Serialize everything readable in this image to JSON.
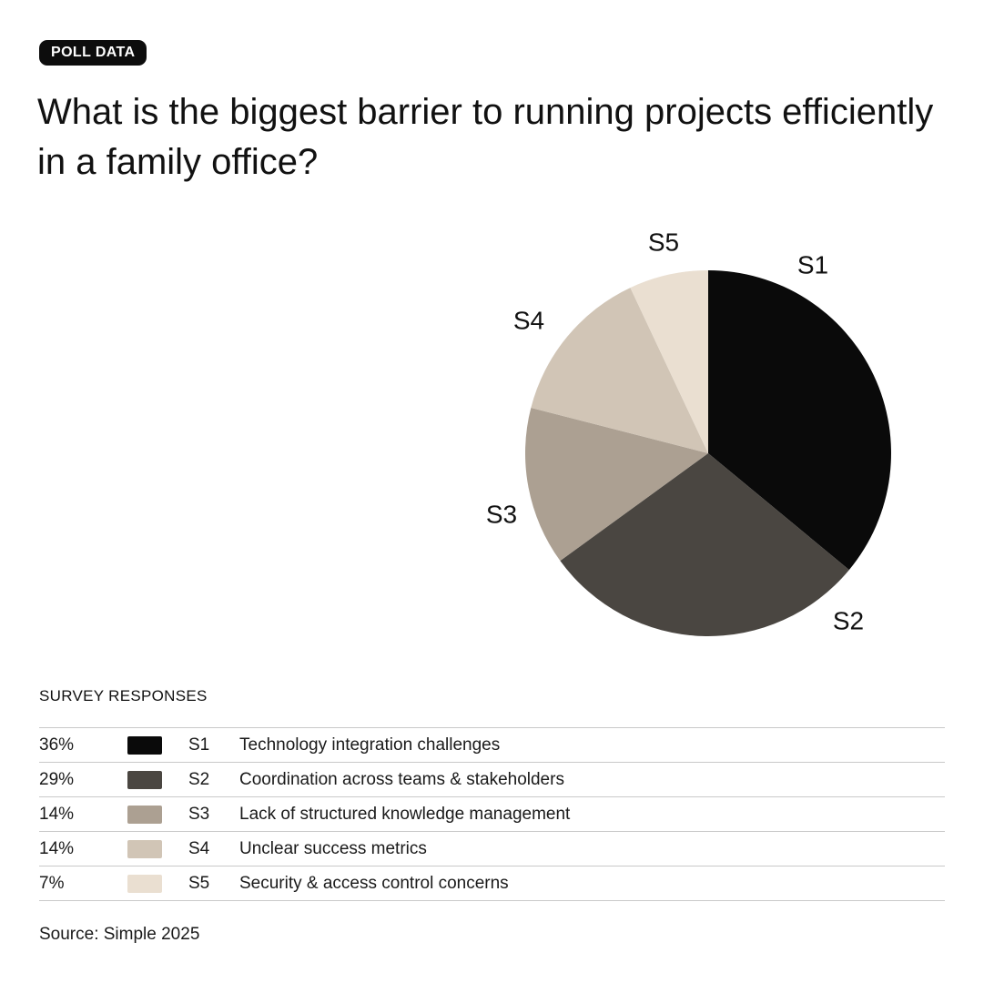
{
  "badge": {
    "label": "POLL DATA"
  },
  "title": "What is the biggest barrier to running projects efficiently in a family office?",
  "section_header": "SURVEY RESPONSES",
  "source": "Source: Simple 2025",
  "chart_data": {
    "type": "pie",
    "title": "What is the biggest barrier to running projects efficiently in a family office?",
    "start_angle": "12 o'clock",
    "direction": "clockwise",
    "legend_position": "table below chart",
    "slices": [
      {
        "code": "S1",
        "label": "Technology integration challenges",
        "value_pct": 36,
        "color": "#0a0a0a"
      },
      {
        "code": "S2",
        "label": "Coordination across teams & stakeholders",
        "value_pct": 29,
        "color": "#4a4641"
      },
      {
        "code": "S3",
        "label": "Lack of structured knowledge management",
        "value_pct": 14,
        "color": "#aca092"
      },
      {
        "code": "S4",
        "label": "Unclear success metrics",
        "value_pct": 14,
        "color": "#d1c5b6"
      },
      {
        "code": "S5",
        "label": "Security & access control concerns",
        "value_pct": 7,
        "color": "#eadfd1"
      }
    ]
  },
  "table": {
    "rows": [
      {
        "pct": "36%",
        "code": "S1",
        "label": "Technology integration challenges",
        "color": "#0a0a0a"
      },
      {
        "pct": "29%",
        "code": "S2",
        "label": "Coordination across teams & stakeholders",
        "color": "#4a4641"
      },
      {
        "pct": "14%",
        "code": "S3",
        "label": "Lack of structured knowledge management",
        "color": "#aca092"
      },
      {
        "pct": "14%",
        "code": "S4",
        "label": "Unclear success metrics",
        "color": "#d1c5b6"
      },
      {
        "pct": "7%",
        "code": "S5",
        "label": "Security & access control concerns",
        "color": "#eadfd1"
      }
    ]
  }
}
